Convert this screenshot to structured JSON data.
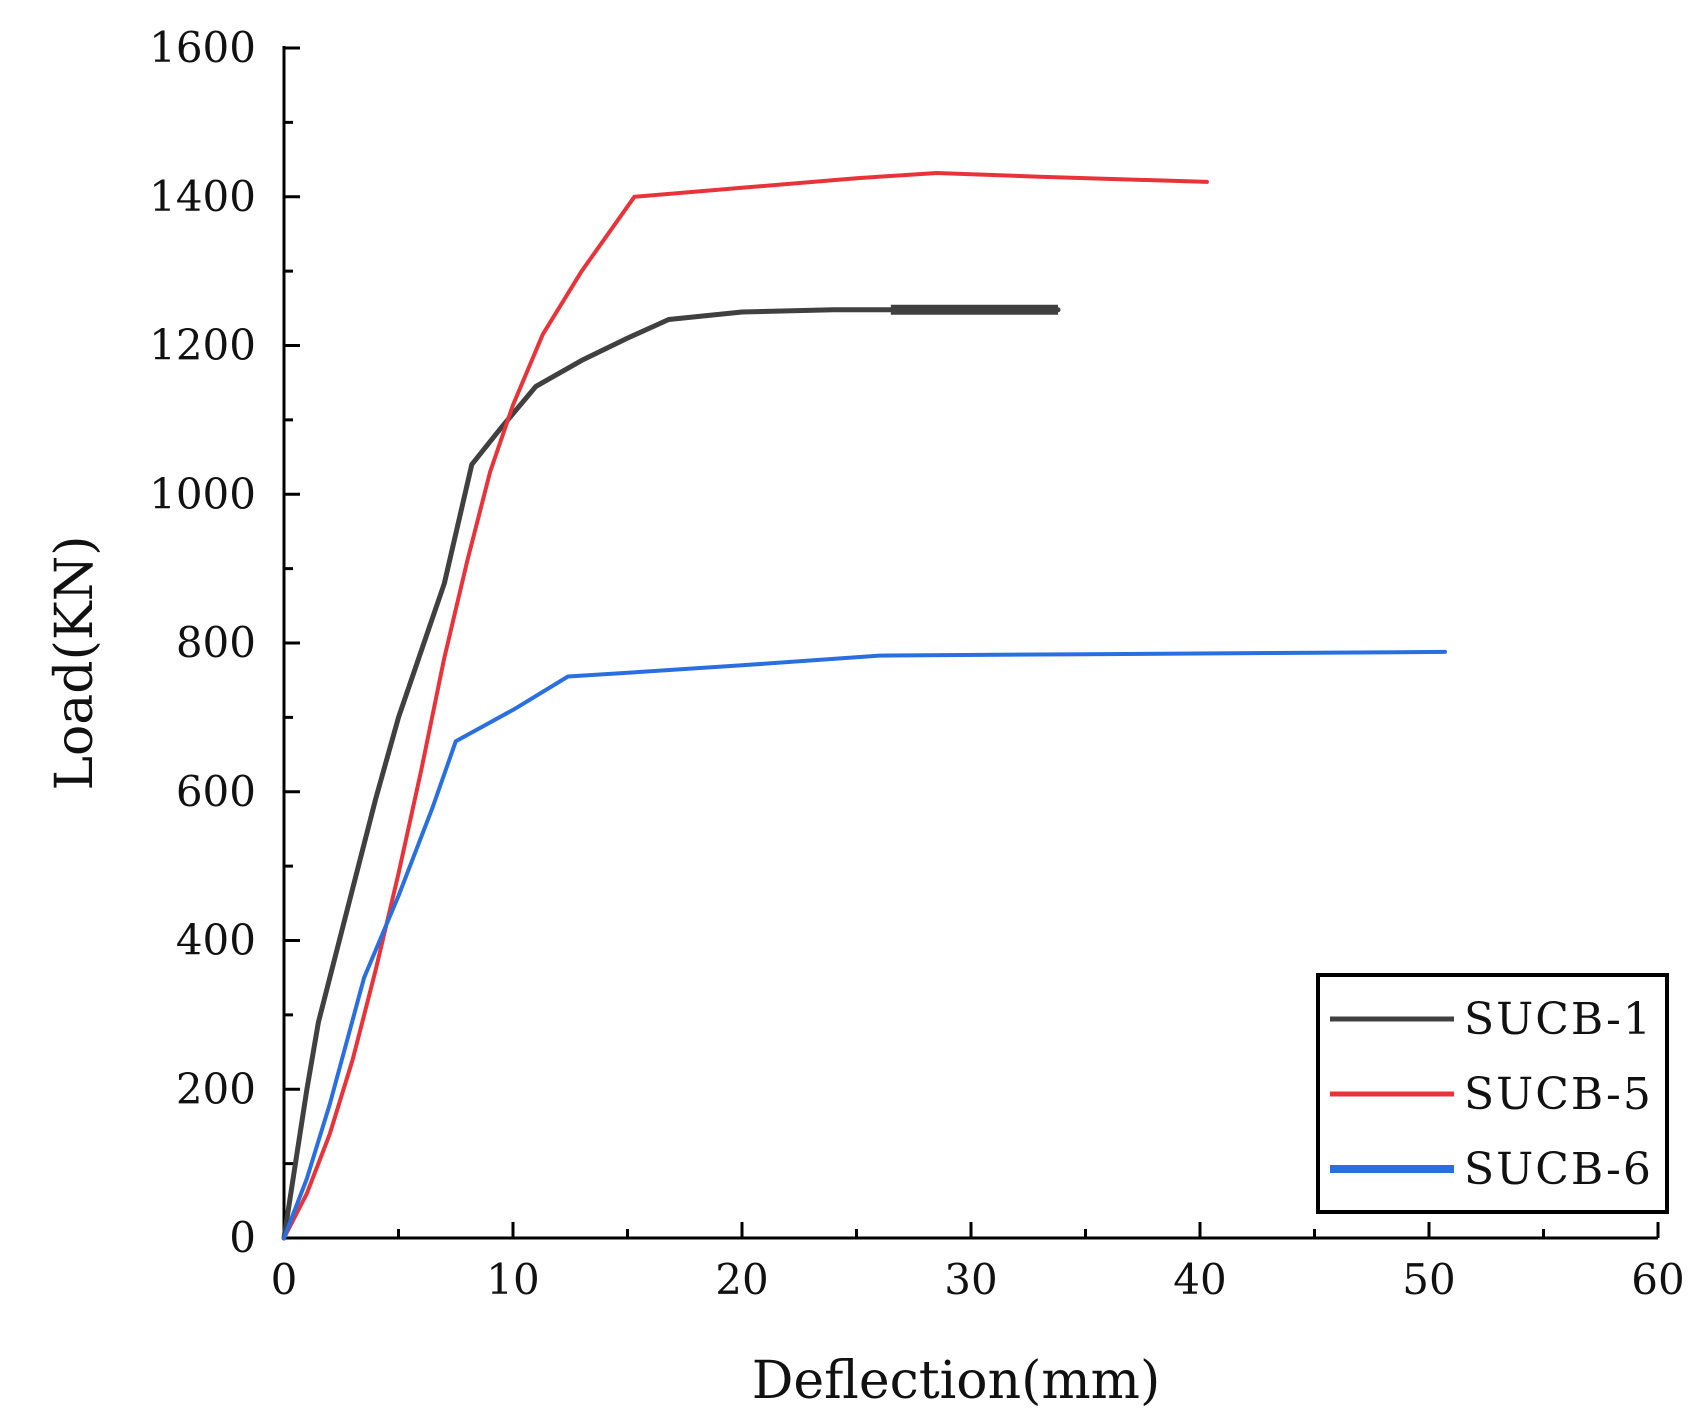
{
  "chart_data": {
    "type": "line",
    "title": "",
    "xlabel": "Deflection(mm)",
    "ylabel": "Load(KN)",
    "xlim": [
      0,
      60
    ],
    "ylim": [
      0,
      1600
    ],
    "x_ticks": [
      0,
      10,
      20,
      30,
      40,
      50,
      60
    ],
    "y_ticks": [
      0,
      200,
      400,
      600,
      800,
      1000,
      1200,
      1400,
      1600
    ],
    "x_tick_labels": [
      "0",
      "10",
      "20",
      "30",
      "40",
      "50",
      "60"
    ],
    "y_tick_labels": [
      "0",
      "200",
      "400",
      "600",
      "800",
      "1000",
      "1200",
      "1400",
      "1600"
    ],
    "grid": false,
    "legend_position": "bottom-right",
    "series": [
      {
        "name": "SUCB-1",
        "color": "#404040",
        "x": [
          0,
          0.5,
          1,
          1.5,
          2,
          3,
          4,
          5,
          6,
          7,
          8.2,
          9.5,
          11,
          13,
          15,
          16.8,
          20,
          24,
          26.5,
          33.8
        ],
        "y": [
          0,
          100,
          200,
          290,
          350,
          470,
          590,
          700,
          790,
          880,
          1040,
          1090,
          1145,
          1180,
          1210,
          1235,
          1245,
          1248,
          1248,
          1248
        ]
      },
      {
        "name": "SUCB-5",
        "color": "#e8333a",
        "x": [
          0,
          1,
          2,
          3,
          4,
          5,
          6,
          7,
          8,
          9,
          10,
          11.3,
          13,
          15.3,
          20,
          25,
          28.5,
          33,
          40.3
        ],
        "y": [
          0,
          60,
          140,
          240,
          360,
          490,
          630,
          780,
          910,
          1030,
          1120,
          1215,
          1300,
          1400,
          1412,
          1425,
          1432,
          1427,
          1420
        ]
      },
      {
        "name": "SUCB-6",
        "color": "#2a6fe0",
        "x": [
          0,
          1,
          2,
          3.5,
          5,
          6.5,
          7.5,
          10,
          12.4,
          16,
          20,
          26,
          35,
          45,
          50.7
        ],
        "y": [
          0,
          80,
          180,
          350,
          460,
          580,
          668,
          710,
          755,
          762,
          770,
          783,
          785,
          787,
          788
        ]
      }
    ]
  }
}
